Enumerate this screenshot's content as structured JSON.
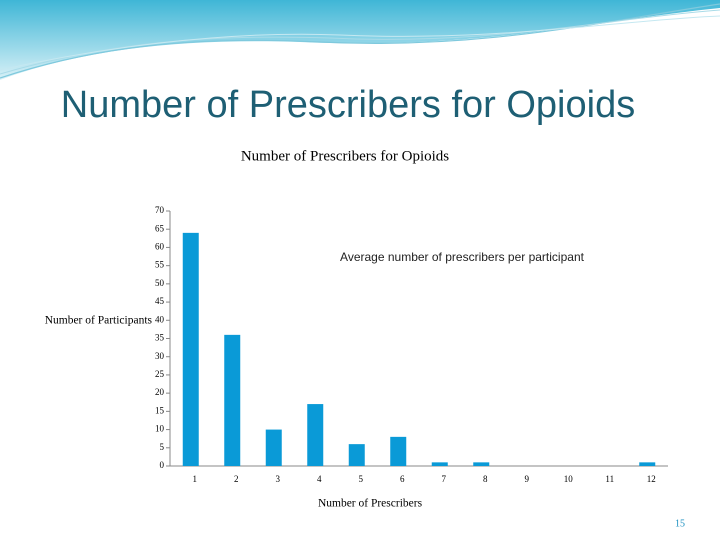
{
  "slide": {
    "title": "Number of Prescribers for Opioids",
    "page_number": "15"
  },
  "chart_data": {
    "type": "bar",
    "title": "Number of Prescribers for Opioids",
    "x_label": "Number of Prescribers",
    "y_label": "Number of Participants",
    "annotation": "Average number of prescribers per participant",
    "categories": [
      "1",
      "2",
      "3",
      "4",
      "5",
      "6",
      "7",
      "8",
      "9",
      "10",
      "11",
      "12"
    ],
    "values": [
      64,
      36,
      10,
      17,
      6,
      8,
      1,
      1,
      0,
      0,
      0,
      1
    ],
    "color": "#0a9ad7",
    "ylim": [
      0,
      70
    ],
    "yticks": [
      0,
      5,
      10,
      15,
      20,
      25,
      30,
      35,
      40,
      45,
      50,
      55,
      60,
      65,
      70
    ],
    "grid": false
  }
}
